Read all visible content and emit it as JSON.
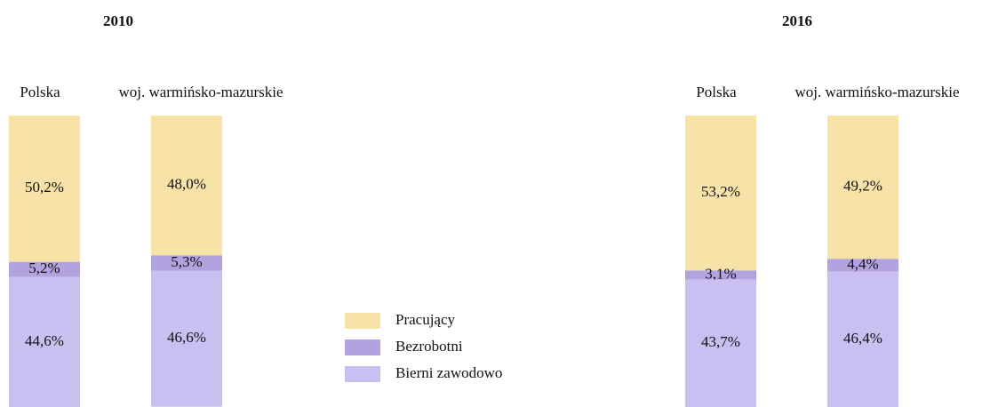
{
  "chart_data": [
    {
      "type": "stacked_bar",
      "title": "2010",
      "categories": [
        "Polska",
        "woj. warmińsko-mazurskie"
      ],
      "series": [
        {
          "name": "Pracujący",
          "color": "#f7e3a8",
          "values": [
            50.2,
            48.0
          ],
          "value_labels": [
            "50,2%",
            "48,0%"
          ]
        },
        {
          "name": "Bezrobotni",
          "color": "#b3a2e0",
          "values": [
            5.2,
            5.3
          ],
          "value_labels": [
            "5,2%",
            "5,3%"
          ]
        },
        {
          "name": "Bierni zawodowo",
          "color": "#c9bff0",
          "values": [
            44.6,
            46.6
          ],
          "value_labels": [
            "44,6%",
            "46,6%"
          ]
        }
      ]
    },
    {
      "type": "stacked_bar",
      "title": "2016",
      "categories": [
        "Polska",
        "woj. warmińsko-mazurskie"
      ],
      "series": [
        {
          "color": "#f7e3a8",
          "values": [
            53.2,
            49.2
          ],
          "value_labels": [
            "53,2%",
            "49,2%"
          ]
        },
        {
          "color": "#b3a2e0",
          "values": [
            3.1,
            4.4
          ],
          "value_labels": [
            "3,1%",
            "4,4%"
          ]
        },
        {
          "color": "#c9bff0",
          "values": [
            43.7,
            46.4
          ],
          "value_labels": [
            "43,7%",
            "46,4%"
          ]
        }
      ]
    }
  ]
}
